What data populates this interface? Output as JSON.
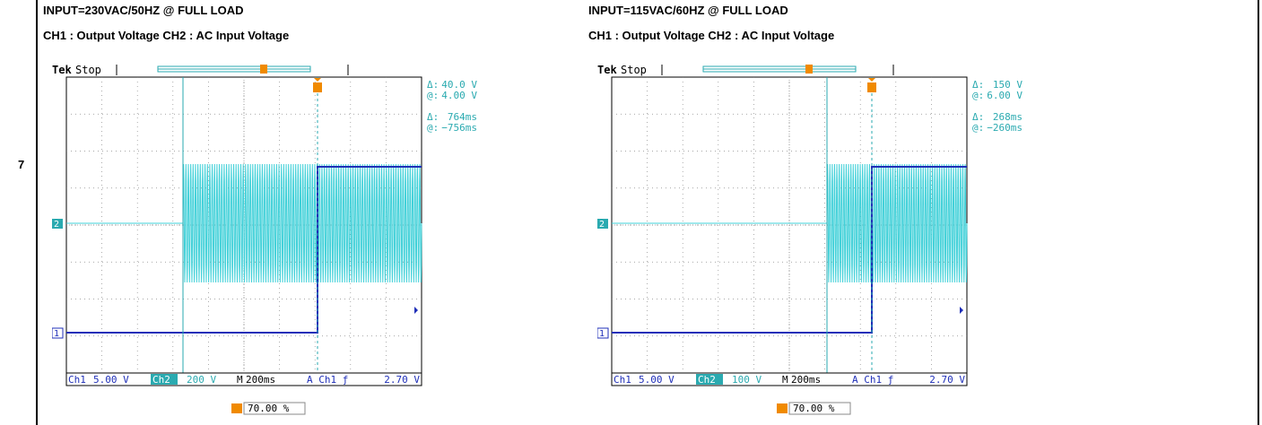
{
  "row_number": "7",
  "panels": [
    {
      "title": "INPUT=230VAC/50HZ @ FULL LOAD",
      "subtitle": "CH1 : Output Voltage CH2 : AC Input Voltage",
      "scope": {
        "brand": "Tek",
        "state": "Stop",
        "readout": {
          "delta_v_label": "Δ:",
          "delta_v": "40.0 V",
          "at_v_label": "@:",
          "at_v": "4.00 V",
          "delta_t_label": "Δ:",
          "delta_t": "764ms",
          "at_t_label": "@:",
          "at_t": "−756ms"
        },
        "ch1_label": "Ch1",
        "ch1_scale": "5.00 V",
        "ch2_label": "Ch2",
        "ch2_scale": "200 V",
        "timebase_label": "M",
        "timebase": "200ms",
        "trigger": "A  Ch1  ƒ",
        "trigger_level": "2.70 V",
        "trigger_position": "70.00 %",
        "ch1_marker": "1",
        "ch2_marker": "2"
      }
    },
    {
      "title": "INPUT=115VAC/60HZ @ FULL LOAD",
      "subtitle": "CH1 : Output Voltage CH2 : AC Input Voltage",
      "scope": {
        "brand": "Tek",
        "state": "Stop",
        "readout": {
          "delta_v_label": "Δ:",
          "delta_v": "150 V",
          "at_v_label": "@:",
          "at_v": "6.00 V",
          "delta_t_label": "Δ:",
          "delta_t": "268ms",
          "at_t_label": "@:",
          "at_t": "−260ms"
        },
        "ch1_label": "Ch1",
        "ch1_scale": "5.00 V",
        "ch2_label": "Ch2",
        "ch2_scale": "100 V",
        "timebase_label": "M",
        "timebase": "200ms",
        "trigger": "A  Ch1  ƒ",
        "trigger_level": "2.70 V",
        "trigger_position": "70.00 %",
        "ch1_marker": "1",
        "ch2_marker": "2"
      }
    }
  ],
  "colors": {
    "ch1": "#1f2fb8",
    "ch2": "#3fd0d8",
    "cursor": "#2aaab0",
    "trigger": "#f08a00",
    "grid": "#8a8a8a"
  }
}
